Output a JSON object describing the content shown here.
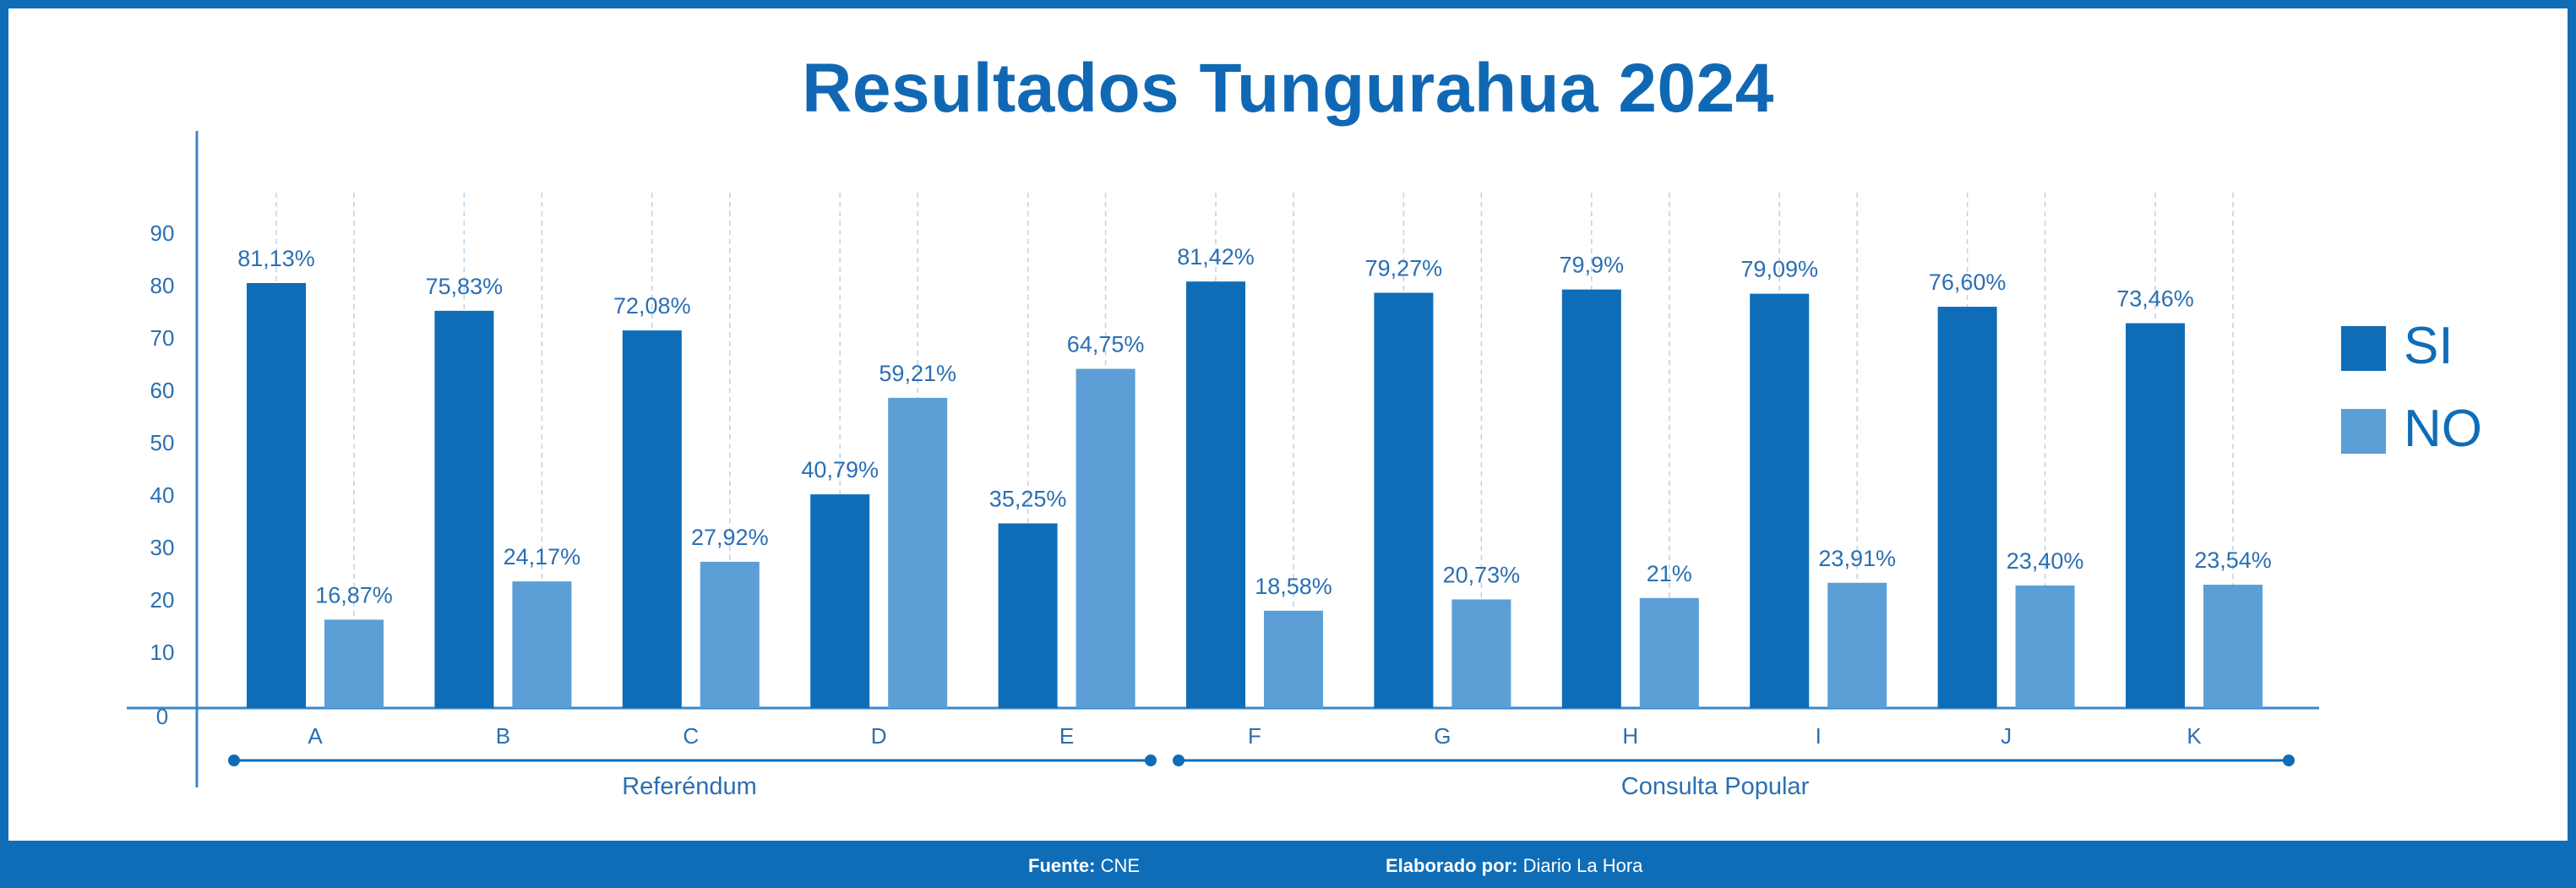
{
  "title": "Resultados Tungurahua 2024",
  "footer": {
    "source_label": "Fuente:",
    "source_value": "CNE",
    "author_label": "Elaborado por:",
    "author_value": "Diario La Hora"
  },
  "colors": {
    "si": "#0f6db8",
    "no": "#5b9fd6",
    "axis": "#3b86c7",
    "text": "#2a6fb3"
  },
  "chart_data": {
    "type": "bar",
    "title": "Resultados Tungurahua 2024",
    "categories": [
      "A",
      "B",
      "C",
      "D",
      "E",
      "F",
      "G",
      "H",
      "I",
      "J",
      "K"
    ],
    "series": [
      {
        "name": "SI",
        "values": [
          81.13,
          75.83,
          72.08,
          40.79,
          35.25,
          81.42,
          79.27,
          79.9,
          79.09,
          76.6,
          73.46
        ],
        "labels": [
          "81,13%",
          "75,83%",
          "72,08%",
          "40,79%",
          "35,25%",
          "81,42%",
          "79,27%",
          "79,9%",
          "79,09%",
          "76,60%",
          "73,46%"
        ]
      },
      {
        "name": "NO",
        "values": [
          16.87,
          24.17,
          27.92,
          59.21,
          64.75,
          18.58,
          20.73,
          21,
          23.91,
          23.4,
          23.54
        ],
        "labels": [
          "16,87%",
          "24,17%",
          "27,92%",
          "59,21%",
          "64,75%",
          "18,58%",
          "20,73%",
          "21%",
          "23,91%",
          "23,40%",
          "23,54%"
        ]
      }
    ],
    "yticks": [
      0,
      10,
      20,
      30,
      40,
      50,
      60,
      70,
      80,
      90
    ],
    "ylim": [
      0,
      90
    ],
    "groups": [
      {
        "label": "Referéndum",
        "categories": [
          "A",
          "B",
          "C",
          "D",
          "E"
        ]
      },
      {
        "label": "Consulta Popular",
        "categories": [
          "F",
          "G",
          "H",
          "I",
          "J",
          "K"
        ]
      }
    ],
    "legend_position": "right",
    "grid": "vertical dashed"
  }
}
